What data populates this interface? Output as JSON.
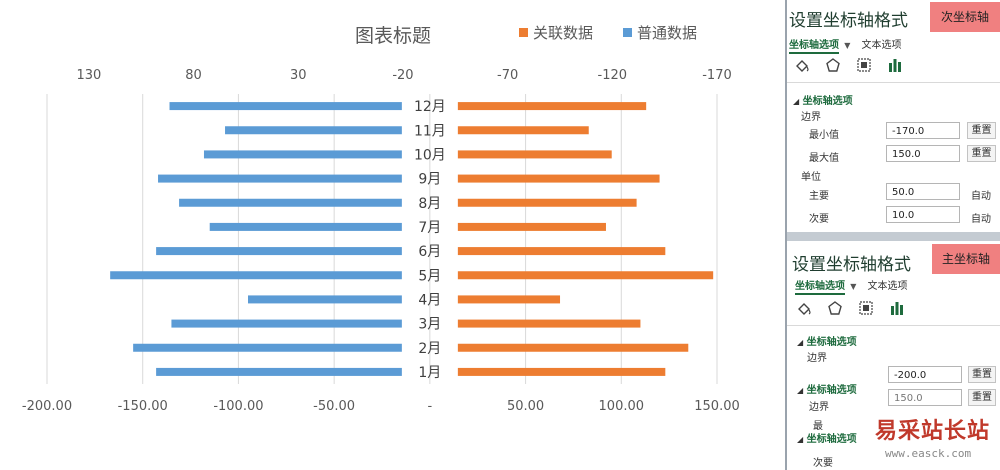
{
  "chart_data": {
    "type": "bar",
    "title": "图表标题",
    "categories": [
      "1月",
      "2月",
      "3月",
      "4月",
      "5月",
      "6月",
      "7月",
      "8月",
      "9月",
      "10月",
      "11月",
      "12月"
    ],
    "series": [
      {
        "name": "普通数据",
        "color": "#5b9bd5",
        "values": [
          -143,
          -155,
          -135,
          -95,
          -167,
          -143,
          -115,
          -131,
          -142,
          -118,
          -107,
          -136
        ]
      },
      {
        "name": "关联数据",
        "color": "#ed7d31",
        "values": [
          123,
          135,
          110,
          68,
          148,
          123,
          92,
          108,
          120,
          95,
          83,
          113
        ]
      }
    ],
    "primary_axis": {
      "min": -200,
      "max": 150,
      "major": 50,
      "tick_labels": [
        "-200.00",
        "-150.00",
        "-100.00",
        "-50.00",
        "-",
        "50.00",
        "100.00",
        "150.00"
      ]
    },
    "secondary_axis": {
      "min": -170,
      "max": 150,
      "major": 50,
      "reversed": true,
      "tick_labels": [
        "130",
        "80",
        "30",
        "-20",
        "-70",
        "-120",
        "-170"
      ]
    },
    "legend": {
      "position": "top",
      "entries": [
        "关联数据",
        "普通数据"
      ]
    },
    "grid": true
  },
  "panel_secondary": {
    "title": "设置坐标轴格式",
    "badge": "次坐标轴",
    "tab_axis": "坐标轴选项",
    "tab_text": "文本选项",
    "section": "坐标轴选项",
    "bounds_label": "边界",
    "min_label": "最小值",
    "min_value": "-170.0",
    "max_label": "最大值",
    "max_value": "150.0",
    "reset": "重置",
    "units_label": "单位",
    "major_label": "主要",
    "major_value": "50.0",
    "minor_label": "次要",
    "minor_value": "10.0",
    "auto": "自动"
  },
  "panel_primary": {
    "title": "设置坐标轴格式",
    "badge": "主坐标轴",
    "tab_axis": "坐标轴选项",
    "tab_text": "文本选项",
    "section": "坐标轴选项",
    "bounds_label": "边界",
    "min_value": "-200.0",
    "max_value": "150.0",
    "reset": "重置",
    "section2": "坐标轴选项",
    "bounds_label2": "边界",
    "label_zui": "最",
    "section3": "坐标轴选项",
    "minor_label": "次要"
  },
  "watermark": {
    "text": "易采站长站",
    "url": "www.easck.com"
  },
  "colors": {
    "accent": "#1e6b3e",
    "badge": "#f08080",
    "blue": "#5b9bd5",
    "orange": "#ed7d31"
  }
}
